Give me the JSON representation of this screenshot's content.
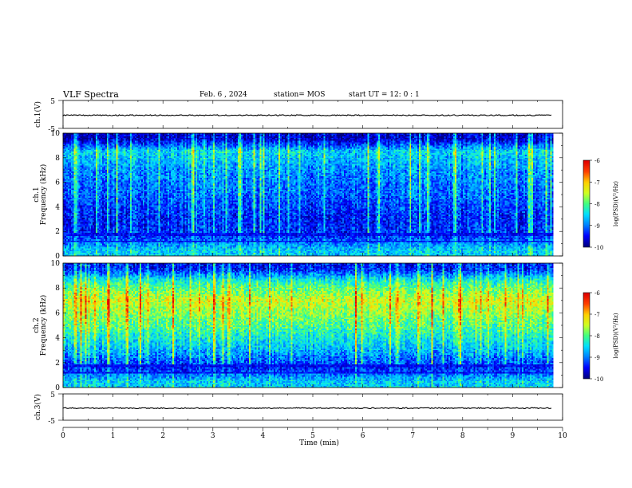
{
  "header": {
    "title": "VLF Spectra",
    "date": "Feb. 6 , 2024",
    "station": "station= MOS",
    "start": "start UT =  12: 0  : 1"
  },
  "colors": {
    "cmap": [
      "#000080",
      "#0000ff",
      "#0080ff",
      "#00e0ff",
      "#40ff80",
      "#d0ff20",
      "#ffd000",
      "#ff4000",
      "#e00000",
      "#ffffff"
    ]
  },
  "chart_data": [
    {
      "type": "line",
      "name": "ch1-waveform",
      "ylabel": "ch.1(V)",
      "ylim": [
        -5,
        5
      ],
      "yticks": [
        "5",
        "-5"
      ],
      "xlim": [
        0,
        10
      ],
      "level": -0.3
    },
    {
      "type": "heatmap",
      "name": "ch1-spectrogram",
      "ylabel": "ch.1\nFrequency (kHz)",
      "ylabel_lines": [
        "ch.1",
        "Frequency (kHz)"
      ],
      "ylim": [
        0,
        10
      ],
      "yticks": [
        "0",
        "2",
        "4",
        "6",
        "8",
        "10"
      ],
      "xlim": [
        0,
        10
      ],
      "data_end_min": 9.8,
      "colorbar": {
        "label": "log(PSD)(V²/Hz)",
        "range": [
          -10,
          -6
        ],
        "ticks": [
          "-6",
          "-7",
          "-8",
          "-9",
          "-10"
        ]
      },
      "mean_level_by_freq_kHz": {
        "0.5": -8.6,
        "1.5": -9.3,
        "3": -9.4,
        "5": -9.1,
        "7": -8.9,
        "8.5": -8.5,
        "9.5": -9.7
      }
    },
    {
      "type": "heatmap",
      "name": "ch2-spectrogram",
      "ylabel": "ch.2\nFrequency (kHz)",
      "ylabel_lines": [
        "ch.2",
        "Frequency (kHz)"
      ],
      "ylim": [
        0,
        10
      ],
      "yticks": [
        "0",
        "2",
        "4",
        "6",
        "8",
        "10"
      ],
      "xlim": [
        0,
        10
      ],
      "data_end_min": 9.8,
      "colorbar": {
        "label": "log(PSD)(V²/Hz)",
        "range": [
          -10,
          -6
        ],
        "ticks": [
          "-6",
          "-7",
          "-8",
          "-9",
          "-10"
        ]
      },
      "mean_level_by_freq_kHz": {
        "0.5": -8.6,
        "1.5": -9.4,
        "3": -8.7,
        "5": -8.0,
        "7": -7.4,
        "8.5": -8.2,
        "9.5": -9.4
      }
    },
    {
      "type": "line",
      "name": "ch3-waveform",
      "ylabel": "ch.3(V)",
      "ylim": [
        -5,
        5
      ],
      "yticks": [
        "5",
        "-5"
      ],
      "xlim": [
        0,
        10
      ],
      "xlabel": "Time (min)",
      "xticks": [
        "0",
        "1",
        "2",
        "3",
        "4",
        "5",
        "6",
        "7",
        "8",
        "9",
        "10"
      ],
      "level": -0.4
    }
  ]
}
